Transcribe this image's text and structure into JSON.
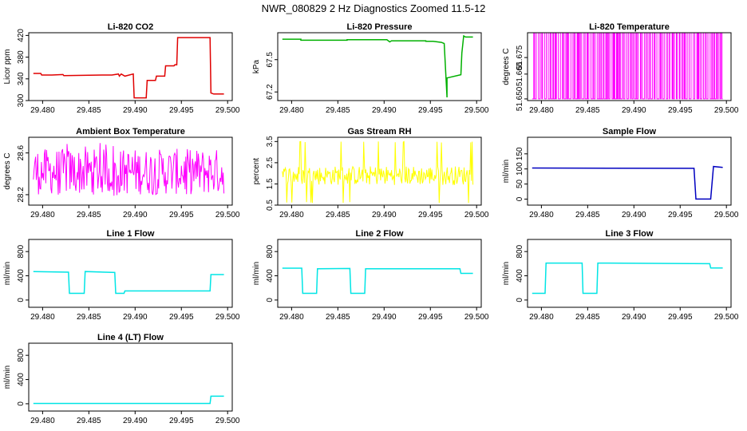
{
  "page_title": "NWR_080829  2 Hz Diagnostics Zoomed 11.5-12",
  "chart_data": [
    {
      "type": "line",
      "title": "Li-820 CO2",
      "ylabel": "Licor ppm",
      "color": "#e00000",
      "xlim": [
        29.4785,
        29.5005
      ],
      "ylim": [
        300,
        425
      ],
      "xticks": [
        "29.480",
        "29.485",
        "29.490",
        "29.495",
        "29.500"
      ],
      "yticks": [
        300,
        340,
        380,
        420
      ],
      "series": [
        {
          "x": [
            29.479,
            29.4798,
            29.4799,
            29.481,
            29.4822,
            29.4823,
            29.4865,
            29.4875,
            29.4882,
            29.4883,
            29.4885,
            29.4889,
            29.4898,
            29.4899,
            29.4912,
            29.4913,
            29.4922,
            29.4923,
            29.4932,
            29.4933,
            29.4942,
            29.4943,
            29.4945,
            29.4946,
            29.4981,
            29.4982,
            29.4985,
            29.4996
          ],
          "y": [
            350,
            350,
            347,
            347,
            348,
            346,
            347,
            347,
            349,
            345,
            349,
            345,
            349,
            305,
            305,
            337,
            337,
            345,
            345,
            364,
            364,
            366,
            366,
            416,
            416,
            314,
            312,
            312
          ]
        }
      ]
    },
    {
      "type": "line",
      "title": "Li-820 Pressure",
      "ylabel": "kPa",
      "color": "#00b000",
      "xlim": [
        29.4785,
        29.5005
      ],
      "ylim": [
        67.12,
        67.75
      ],
      "xticks": [
        "29.480",
        "29.485",
        "29.490",
        "29.495",
        "29.500"
      ],
      "yticks": [
        "67.2",
        "67.5"
      ],
      "series": [
        {
          "x": [
            29.479,
            29.481,
            29.481,
            29.486,
            29.486,
            29.4903,
            29.4906,
            29.4908,
            29.4935,
            29.4945,
            29.4945,
            29.4953,
            29.4962,
            29.4965,
            29.4968,
            29.4968,
            29.4983,
            29.4984,
            29.4986,
            29.4988,
            29.4996
          ],
          "y": [
            67.69,
            67.69,
            67.68,
            67.68,
            67.685,
            67.685,
            67.665,
            67.675,
            67.675,
            67.675,
            67.67,
            67.67,
            67.66,
            67.65,
            67.15,
            67.33,
            67.36,
            67.56,
            67.72,
            67.71,
            67.71
          ]
        }
      ]
    },
    {
      "type": "line",
      "title": "Li-820 Temperature",
      "ylabel": "degrees C",
      "color": "#ff00ff",
      "xlim": [
        29.4785,
        29.5005
      ],
      "ylim": [
        51.649,
        51.69
      ],
      "xticks": [
        "29.480",
        "29.485",
        "29.490",
        "29.495",
        "29.500"
      ],
      "yticks": [
        "51.650",
        "51.665",
        "51.675"
      ],
      "toggle": true,
      "levels": [
        51.65,
        51.69
      ],
      "series": []
    },
    {
      "type": "line",
      "title": "Ambient Box Temperature",
      "ylabel": "degrees C",
      "color": "#ff00ff",
      "xlim": [
        29.4785,
        29.5005
      ],
      "ylim": [
        28.1,
        28.75
      ],
      "xticks": [
        "29.480",
        "29.485",
        "29.490",
        "29.495",
        "29.500"
      ],
      "yticks": [
        "28.2",
        "28.6"
      ],
      "noise": {
        "mean": 28.42,
        "amp": 0.22,
        "lo": 28.18,
        "hi": 28.7
      },
      "series": []
    },
    {
      "type": "line",
      "title": "Gas Stream RH",
      "ylabel": "percent",
      "color": "#ffff00",
      "xlim": [
        29.4785,
        29.5005
      ],
      "ylim": [
        0.5,
        3.7
      ],
      "xticks": [
        "29.480",
        "29.485",
        "29.490",
        "29.495",
        "29.500"
      ],
      "yticks": [
        "0.5",
        "1.5",
        "2.5",
        "3.5"
      ],
      "noise": {
        "mean": 1.9,
        "amp": 0.45,
        "lo": 0.6,
        "hi": 3.5
      },
      "series": []
    },
    {
      "type": "line",
      "title": "Sample Flow",
      "ylabel": "ml/min",
      "color": "#0000c0",
      "xlim": [
        29.4785,
        29.5005
      ],
      "ylim": [
        -20,
        205
      ],
      "xticks": [
        "29.480",
        "29.485",
        "29.490",
        "29.495",
        "29.500"
      ],
      "yticks": [
        0,
        50,
        100,
        150
      ],
      "series": [
        {
          "x": [
            29.479,
            29.4965,
            29.4967,
            29.4983,
            29.4986,
            29.4996
          ],
          "y": [
            103,
            102,
            0,
            0,
            108,
            105
          ]
        }
      ]
    },
    {
      "type": "line",
      "title": "Line 1 Flow",
      "ylabel": "ml/min",
      "color": "#00e5e5",
      "xlim": [
        29.4785,
        29.5005
      ],
      "ylim": [
        -120,
        1000
      ],
      "xticks": [
        "29.480",
        "29.485",
        "29.490",
        "29.495",
        "29.500"
      ],
      "yticks": [
        0,
        400,
        800
      ],
      "series": [
        {
          "x": [
            29.479,
            29.4828,
            29.4829,
            29.4845,
            29.4846,
            29.4878,
            29.4879,
            29.4888,
            29.4889,
            29.4981,
            29.4982,
            29.4996
          ],
          "y": [
            470,
            460,
            110,
            110,
            470,
            455,
            110,
            110,
            150,
            150,
            420,
            420
          ]
        }
      ]
    },
    {
      "type": "line",
      "title": "Line 2 Flow",
      "ylabel": "ml/min",
      "color": "#00e5e5",
      "xlim": [
        29.4785,
        29.5005
      ],
      "ylim": [
        -120,
        1000
      ],
      "xticks": [
        "29.480",
        "29.485",
        "29.490",
        "29.495",
        "29.500"
      ],
      "yticks": [
        0,
        400,
        800
      ],
      "series": [
        {
          "x": [
            29.479,
            29.4811,
            29.4812,
            29.4827,
            29.4828,
            29.4863,
            29.4864,
            29.4879,
            29.488,
            29.4982,
            29.4983,
            29.4996
          ],
          "y": [
            525,
            525,
            110,
            110,
            515,
            520,
            110,
            110,
            515,
            515,
            440,
            440
          ]
        }
      ]
    },
    {
      "type": "line",
      "title": "Line 3 Flow",
      "ylabel": "ml/min",
      "color": "#00e5e5",
      "xlim": [
        29.4785,
        29.5005
      ],
      "ylim": [
        -120,
        1000
      ],
      "xticks": [
        "29.480",
        "29.485",
        "29.490",
        "29.495",
        "29.500"
      ],
      "yticks": [
        0,
        400,
        800
      ],
      "series": [
        {
          "x": [
            29.479,
            29.4804,
            29.4805,
            29.4844,
            29.4845,
            29.486,
            29.4861,
            29.4982,
            29.4983,
            29.4996
          ],
          "y": [
            110,
            110,
            610,
            610,
            110,
            110,
            610,
            600,
            530,
            530
          ]
        }
      ]
    },
    {
      "type": "line",
      "title": "Line 4 (LT) Flow",
      "ylabel": "ml/min",
      "color": "#00e5e5",
      "xlim": [
        29.4785,
        29.5005
      ],
      "ylim": [
        -120,
        1000
      ],
      "xticks": [
        "29.480",
        "29.485",
        "29.490",
        "29.495",
        "29.500"
      ],
      "yticks": [
        0,
        400,
        800
      ],
      "series": [
        {
          "x": [
            29.479,
            29.4981,
            29.4982,
            29.4996
          ],
          "y": [
            5,
            5,
            125,
            125
          ]
        }
      ]
    }
  ]
}
